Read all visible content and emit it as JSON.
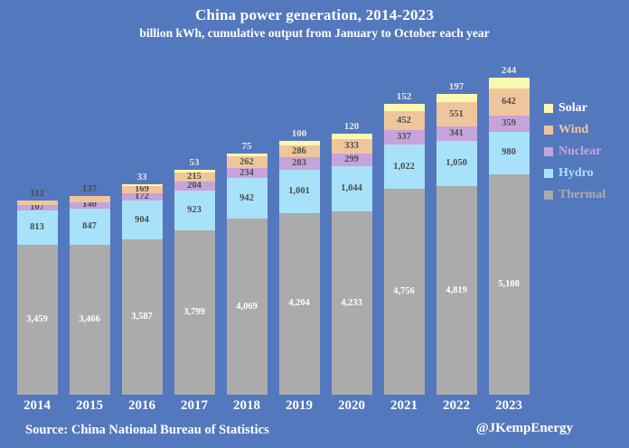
{
  "header": {
    "title": "China power generation, 2014-2023",
    "subtitle": "billion kWh, cumulative output from January to October each year"
  },
  "footer": {
    "source": "Source: China National Bureau of Statistics",
    "attribution": "@JKempEnergy"
  },
  "colors": {
    "background": "#5478BD",
    "title_text": "#FFFFFF",
    "label_dark": "#4D4D4D",
    "label_light": "#FFFFFF"
  },
  "legend": {
    "position": "right",
    "items": [
      {
        "label": "Solar",
        "swatch": "#FBF9B0",
        "text_color": "#FFFFFF"
      },
      {
        "label": "Wind",
        "swatch": "#EFC69B",
        "text_color": "#EFC69B"
      },
      {
        "label": "Nuclear",
        "swatch": "#C7A3DB",
        "text_color": "#C7A3DB"
      },
      {
        "label": "Hydro",
        "swatch": "#A7E2FA",
        "text_color": "#A7E2FA"
      },
      {
        "label": "Thermal",
        "swatch": "#ABABAB",
        "text_color": "#ABABAB"
      }
    ]
  },
  "chart_data": {
    "type": "bar",
    "stacked": true,
    "grid": false,
    "legend_position": "right",
    "title": "China power generation, 2014-2023",
    "xlabel": "",
    "ylabel": "billion kWh",
    "ylim": [
      0,
      7400
    ],
    "categories": [
      "2014",
      "2015",
      "2016",
      "2017",
      "2018",
      "2019",
      "2020",
      "2021",
      "2022",
      "2023"
    ],
    "series": [
      {
        "name": "Thermal",
        "color": "#ABABAB",
        "label_color": "#FFFFFF",
        "label_placement": "inside",
        "values": [
          3459,
          3466,
          3587,
          3799,
          4069,
          4204,
          4233,
          4756,
          4819,
          5108
        ]
      },
      {
        "name": "Hydro",
        "color": "#A7E2FA",
        "label_color": "#4D4D4D",
        "label_placement": "inside",
        "values": [
          813,
          847,
          904,
          923,
          942,
          1001,
          1044,
          1022,
          1050,
          980
        ]
      },
      {
        "name": "Nuclear",
        "color": "#C7A3DB",
        "label_color": "#4D4D4D",
        "label_placement": "inside",
        "values": [
          107,
          140,
          172,
          204,
          234,
          283,
          299,
          337,
          341,
          359
        ]
      },
      {
        "name": "Wind",
        "color": "#EFC69B",
        "label_color": "#4D4D4D",
        "label_placement": "inside",
        "values": [
          112,
          137,
          169,
          215,
          262,
          286,
          333,
          452,
          551,
          642
        ]
      },
      {
        "name": "Solar",
        "color": "#FBF9B0",
        "label_color": "#E9E9E5",
        "label_placement": "above",
        "values": [
          0,
          0,
          33,
          53,
          75,
          100,
          120,
          152,
          197,
          244
        ]
      }
    ],
    "above_bar_labels": [
      {
        "text": "112",
        "series": "Wind",
        "style": "dark"
      },
      {
        "text": "137",
        "series": "Wind",
        "style": "dark"
      },
      {
        "text": "33",
        "series": "Solar",
        "style": "light"
      },
      {
        "text": "53",
        "series": "Solar",
        "style": "light"
      },
      {
        "text": "75",
        "series": "Solar",
        "style": "light"
      },
      {
        "text": "100",
        "series": "Solar",
        "style": "light"
      },
      {
        "text": "120",
        "series": "Solar",
        "style": "light"
      },
      {
        "text": "152",
        "series": "Solar",
        "style": "light"
      },
      {
        "text": "197",
        "series": "Solar",
        "style": "light"
      },
      {
        "text": "244",
        "series": "Solar",
        "style": "light"
      }
    ]
  }
}
